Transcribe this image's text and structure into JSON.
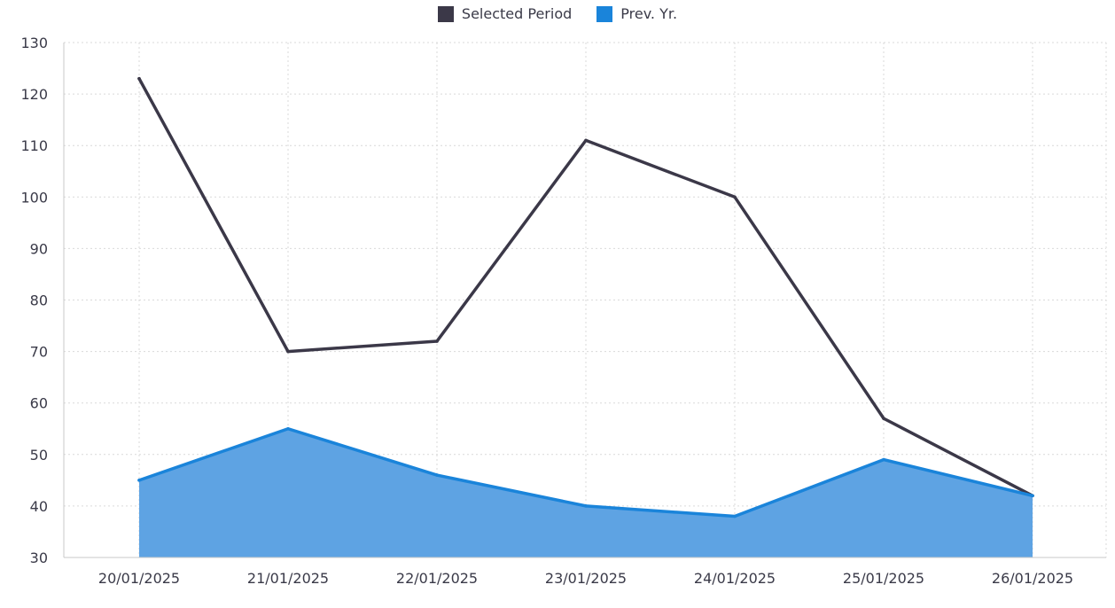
{
  "chart_data": {
    "type": "line",
    "categories": [
      "20/01/2025",
      "21/01/2025",
      "22/01/2025",
      "23/01/2025",
      "24/01/2025",
      "25/01/2025",
      "26/01/2025"
    ],
    "series": [
      {
        "name": "Selected Period",
        "type": "line",
        "color": "#3b3848",
        "values": [
          123,
          70,
          72,
          111,
          100,
          57,
          42
        ]
      },
      {
        "name": "Prev. Yr.",
        "type": "area",
        "color": "#1a84da",
        "fill": "#5ea3e3",
        "values": [
          45,
          55,
          46,
          40,
          38,
          49,
          42
        ]
      }
    ],
    "ylim": [
      30,
      130
    ],
    "yticks": [
      30,
      40,
      50,
      60,
      70,
      80,
      90,
      100,
      110,
      120,
      130
    ],
    "grid": true,
    "legend_position": "top-center"
  }
}
